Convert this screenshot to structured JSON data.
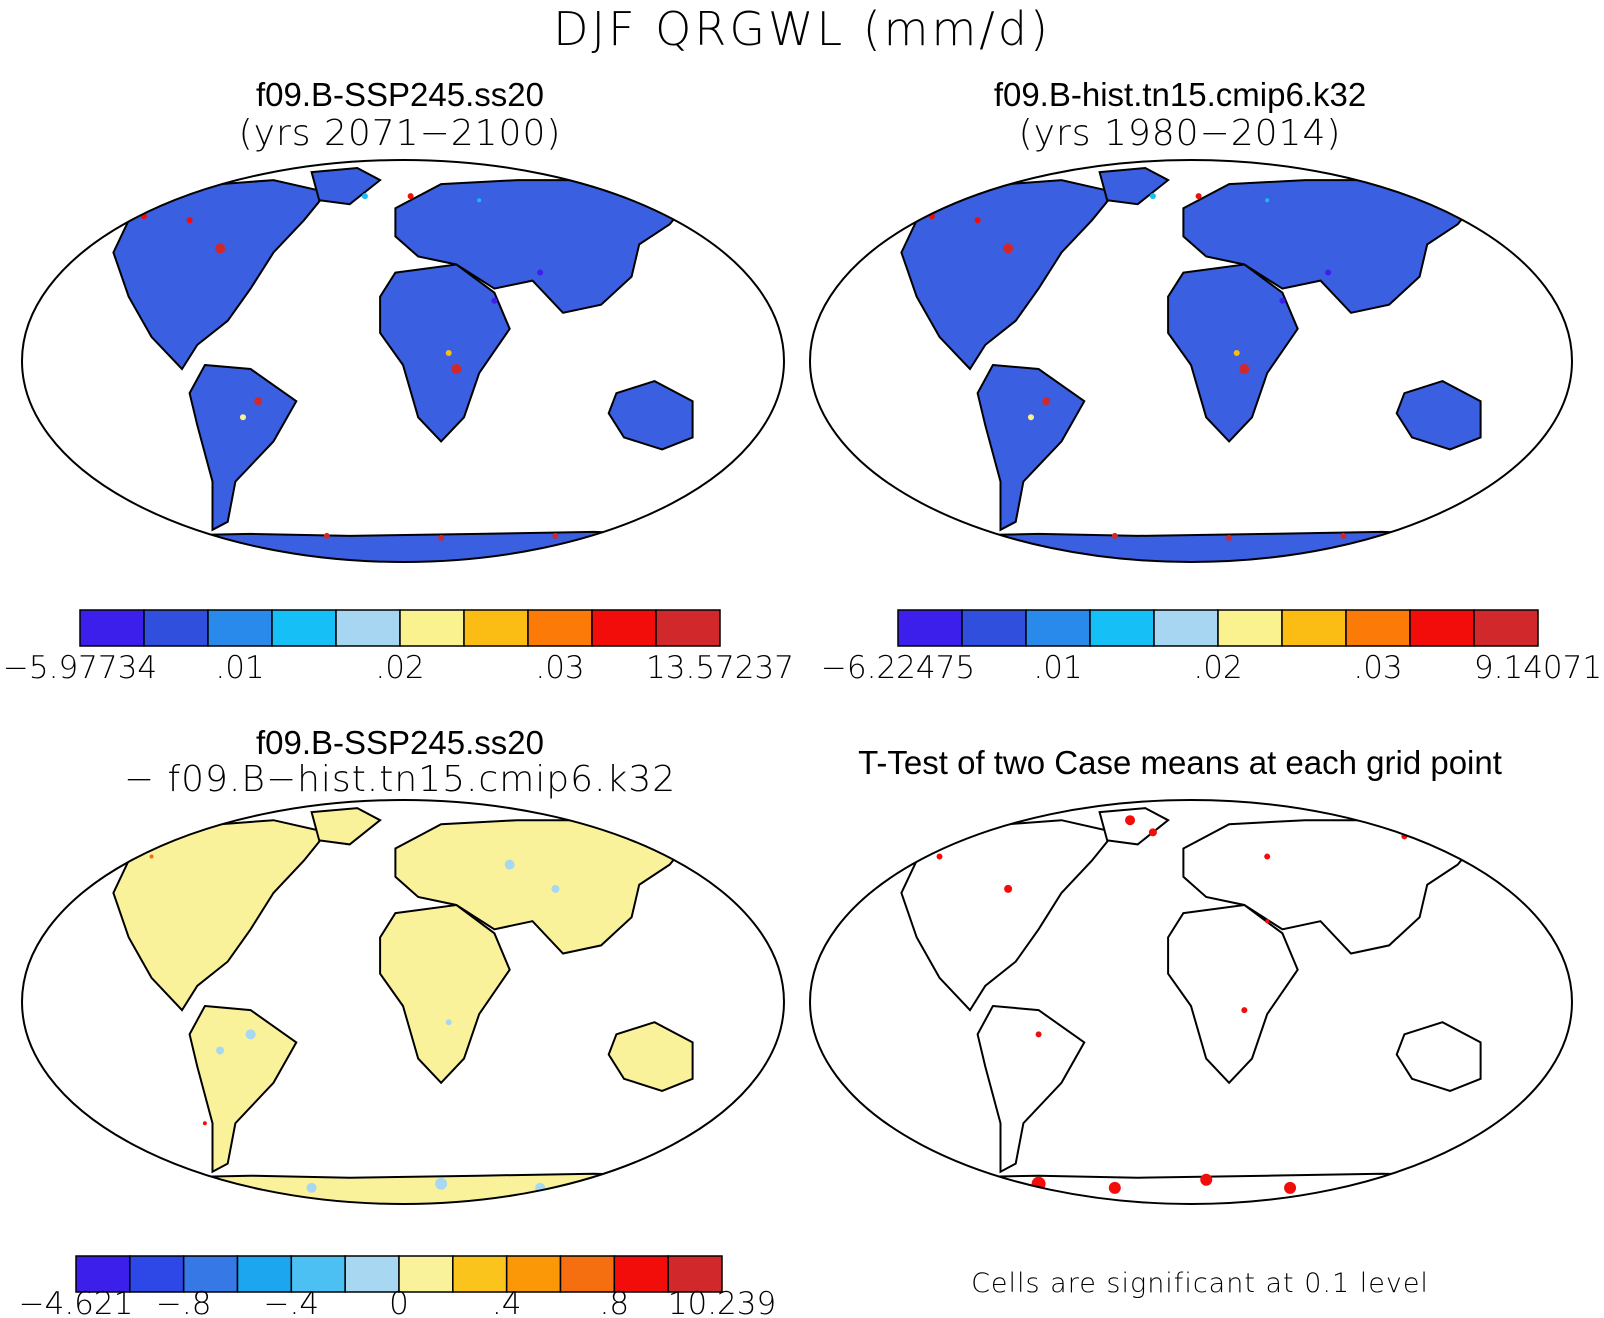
{
  "title": "DJF QRGWL (mm/d)",
  "panels": [
    {
      "id": "future",
      "title": "f09.B-SSP245.ss20",
      "subtitle": "(yrs 2071−2100)",
      "land_fill": "#3a5fe0",
      "colorbar": {
        "colors": [
          "#3d1fec",
          "#2f4fdc",
          "#2a8aec",
          "#16bff5",
          "#a6d6f1",
          "#faf28f",
          "#fbbd13",
          "#fb7a08",
          "#f20d0b",
          "#d1292b"
        ],
        "labels": [
          "−5.97734",
          ".01",
          ".02",
          ".03",
          "13.57237"
        ]
      }
    },
    {
      "id": "historical",
      "title": "f09.B-hist.tn15.cmip6.k32",
      "subtitle": "(yrs 1980−2014)",
      "land_fill": "#3a5fe0",
      "colorbar": {
        "colors": [
          "#3d1fec",
          "#2f4fdc",
          "#2a8aec",
          "#16bff5",
          "#a6d6f1",
          "#faf28f",
          "#fbbd13",
          "#fb7a08",
          "#f20d0b",
          "#d1292b"
        ],
        "labels": [
          "−6.22475",
          ".01",
          ".02",
          ".03",
          "9.14071"
        ]
      }
    },
    {
      "id": "difference",
      "title": "f09.B-SSP245.ss20",
      "subtitle": "− f09.B−hist.tn15.cmip6.k32",
      "land_fill": "#faf29b",
      "colorbar": {
        "colors": [
          "#3d1fec",
          "#2d48e6",
          "#3578e6",
          "#1da6f0",
          "#4cc0f2",
          "#a8d8f1",
          "#faf29b",
          "#fbc41c",
          "#fb9808",
          "#f56f10",
          "#f20d0b",
          "#d1292b"
        ],
        "labels": [
          "−4.621",
          "−.8",
          "−.4",
          "0",
          ".4",
          ".8",
          "10.239"
        ]
      }
    },
    {
      "id": "ttest",
      "title": "T-Test of two Case means at each grid point",
      "land_fill": "#ffffff",
      "footnote": "Cells are significant at 0.1 level"
    }
  ]
}
